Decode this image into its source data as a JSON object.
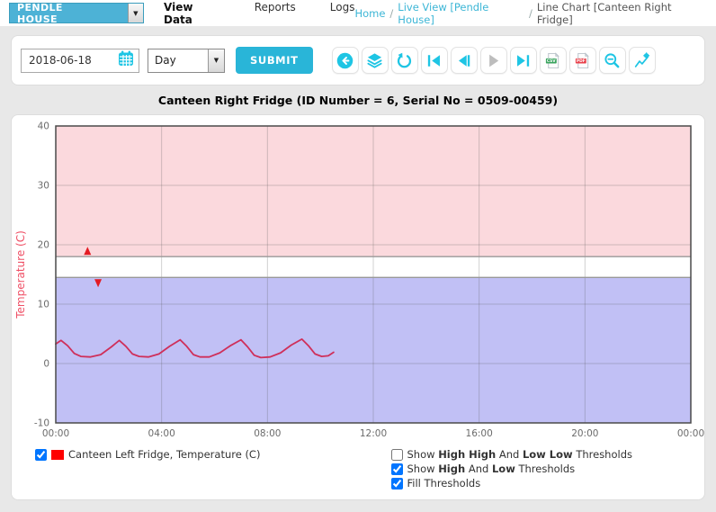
{
  "nav": {
    "site_selector": {
      "value": "PENDLE HOUSE"
    },
    "items": [
      {
        "label": "View Data",
        "active": true
      },
      {
        "label": "Reports",
        "active": false
      },
      {
        "label": "Logs",
        "active": false
      }
    ],
    "breadcrumb": {
      "sep": "/",
      "items": [
        {
          "label": "Home",
          "link": true
        },
        {
          "label": "Live View [Pendle House]",
          "link": true
        },
        {
          "label": "Line Chart [Canteen Right Fridge]",
          "link": false
        }
      ]
    }
  },
  "toolbar": {
    "date_value": "2018-06-18",
    "period_value": "Day",
    "submit_label": "SUBMIT",
    "icons": [
      "back",
      "layers",
      "refresh",
      "skip-start",
      "step-back",
      "step-forward-disabled",
      "skip-end",
      "export-csv",
      "export-pdf",
      "zoom-out",
      "chart-settings"
    ],
    "csv_badge": "CSV",
    "pdf_badge": "PDF",
    "accent_color": "#1ec5e4"
  },
  "chart_title": "Canteen Right Fridge (ID Number = 6, Serial No = 0509-00459)",
  "chart_data": {
    "type": "line",
    "title": "Canteen Right Fridge (ID Number = 6, Serial No = 0509-00459)",
    "xlabel": "",
    "ylabel": "Temperature (C)",
    "ylabel_color": "#ef5066",
    "ylim": [
      -10,
      40
    ],
    "y_ticks": [
      40,
      30,
      20,
      10,
      0,
      -10
    ],
    "x_range_hours": [
      0,
      24
    ],
    "x_tick_hours": [
      0,
      4,
      8,
      12,
      16,
      20,
      24
    ],
    "x_ticks": [
      "00:00",
      "04:00",
      "08:00",
      "12:00",
      "16:00",
      "20:00",
      "00:00"
    ],
    "grid": true,
    "legend_position": "bottom-left",
    "thresholds": {
      "high": 18,
      "low": 14.5,
      "fill": true,
      "high_fill_color": "#fbd9dd",
      "low_fill_color": "#c1c0f5",
      "line_color": "#999999"
    },
    "series": [
      {
        "name": "Canteen Left Fridge, Temperature (C)",
        "color": "#cf2f5a",
        "points": [
          [
            0.0,
            3.3
          ],
          [
            0.2,
            3.9
          ],
          [
            0.45,
            3.0
          ],
          [
            0.7,
            1.7
          ],
          [
            0.95,
            1.2
          ],
          [
            1.3,
            1.1
          ],
          [
            1.7,
            1.5
          ],
          [
            2.1,
            2.8
          ],
          [
            2.4,
            3.9
          ],
          [
            2.65,
            2.9
          ],
          [
            2.9,
            1.6
          ],
          [
            3.15,
            1.2
          ],
          [
            3.5,
            1.1
          ],
          [
            3.9,
            1.6
          ],
          [
            4.3,
            2.9
          ],
          [
            4.7,
            4.0
          ],
          [
            4.95,
            2.9
          ],
          [
            5.2,
            1.5
          ],
          [
            5.45,
            1.1
          ],
          [
            5.8,
            1.1
          ],
          [
            6.2,
            1.8
          ],
          [
            6.6,
            3.0
          ],
          [
            7.0,
            4.0
          ],
          [
            7.25,
            2.8
          ],
          [
            7.5,
            1.4
          ],
          [
            7.75,
            1.0
          ],
          [
            8.1,
            1.1
          ],
          [
            8.5,
            1.8
          ],
          [
            8.9,
            3.1
          ],
          [
            9.3,
            4.1
          ],
          [
            9.55,
            3.0
          ],
          [
            9.8,
            1.6
          ],
          [
            10.05,
            1.2
          ],
          [
            10.3,
            1.3
          ],
          [
            10.5,
            1.9
          ]
        ]
      }
    ],
    "markers": [
      {
        "type": "up-arrow",
        "x": 1.2,
        "y": 18.9,
        "color": "#e31b23"
      },
      {
        "type": "down-arrow",
        "x": 1.6,
        "y": 13.6,
        "color": "#e31b23"
      }
    ]
  },
  "legend": {
    "checked": true,
    "swatch_color": "#fe0000",
    "series_label": "Canteen Left Fridge, Temperature (C)"
  },
  "threshold_options": [
    {
      "checked": false,
      "parts": [
        "Show ",
        "High High",
        " And ",
        "Low Low",
        " Thresholds"
      ]
    },
    {
      "checked": true,
      "parts": [
        "Show ",
        "High",
        " And ",
        "Low",
        " Thresholds"
      ]
    },
    {
      "checked": true,
      "parts": [
        "Fill Thresholds"
      ]
    }
  ]
}
